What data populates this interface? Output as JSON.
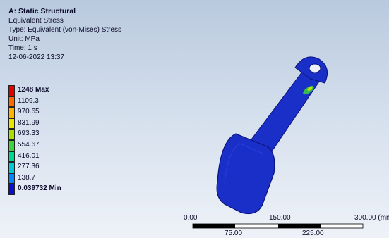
{
  "header": {
    "title": "A: Static Structural",
    "result": "Equivalent Stress",
    "type": "Type: Equivalent (von-Mises) Stress",
    "unit": "Unit: MPa",
    "time": "Time: 1 s",
    "date": "12-06-2022 13:37"
  },
  "legend": {
    "items": [
      {
        "label": "1248 Max",
        "color": "#e00000",
        "bold": true
      },
      {
        "label": "1109.3",
        "color": "#ff6a00"
      },
      {
        "label": "970.65",
        "color": "#ffb300"
      },
      {
        "label": "831.99",
        "color": "#e6e600"
      },
      {
        "label": "693.33",
        "color": "#a8e000"
      },
      {
        "label": "554.67",
        "color": "#3ed23e"
      },
      {
        "label": "416.01",
        "color": "#00d890"
      },
      {
        "label": "277.36",
        "color": "#00c8d8"
      },
      {
        "label": "138.7",
        "color": "#0084ff"
      },
      {
        "label": "0.039732 Min",
        "color": "#0a10c8",
        "bold": true
      }
    ]
  },
  "scale": {
    "top_labels": [
      "0.00",
      "150.00",
      "300.00 (mm)"
    ],
    "bottom_labels": [
      "75.00",
      "225.00"
    ]
  },
  "colors": {
    "model_blue": "#1a2fc8",
    "model_edge": "#0a137a",
    "hotspot": "#3ed23e"
  }
}
